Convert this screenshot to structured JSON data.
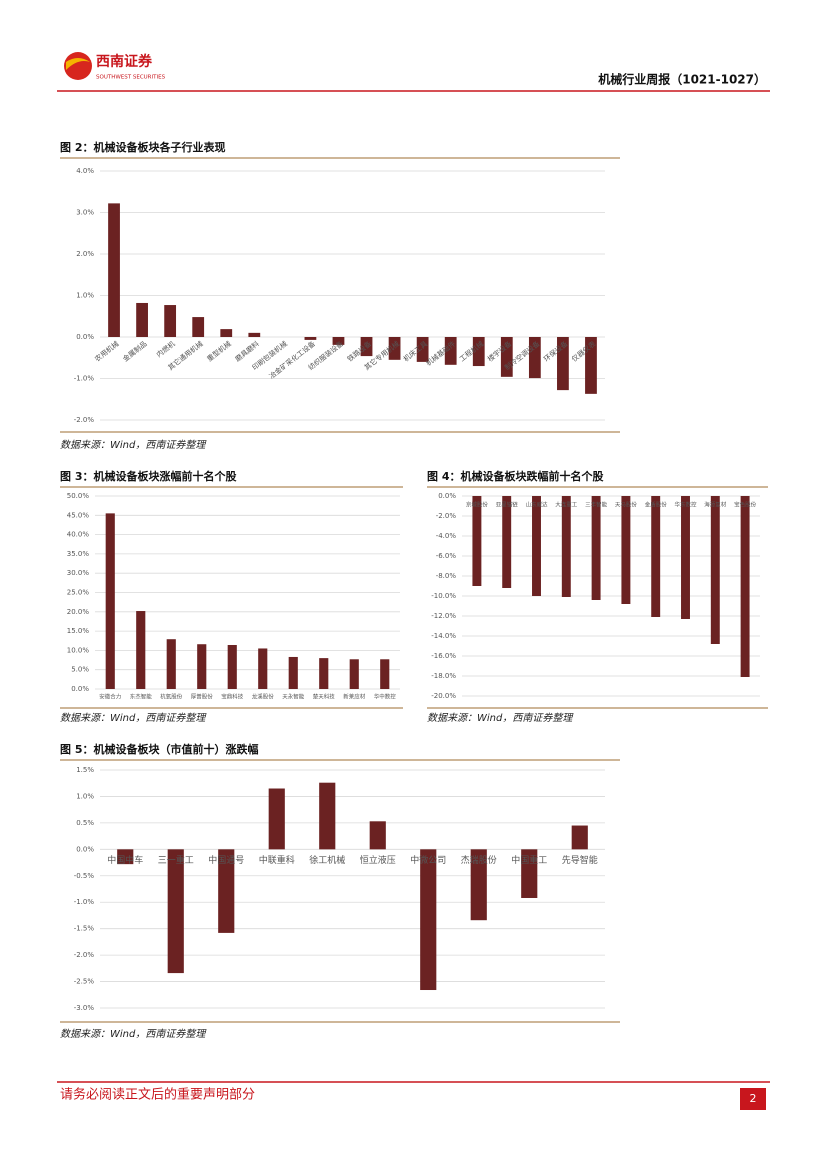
{
  "header": {
    "logo_cn": "西南证券",
    "logo_en": "SOUTHWEST SECURITIES",
    "report_title": "机械行业周报（1021-1027）"
  },
  "chart_data": [
    {
      "type": "bar",
      "title": "图 2：机械设备板块各子行业表现",
      "source": "数据来源：Wind，西南证券整理",
      "categories": [
        "农用机械",
        "金属制品",
        "内燃机",
        "其它通用机械",
        "重型机械",
        "磨具磨料",
        "印刷包装机械",
        "冶金矿采化工设备",
        "纺织服装设备",
        "铁路设备",
        "其它专用机械",
        "机床工具",
        "机械基础件",
        "工程机械",
        "楼宇设备",
        "制冷空调设备",
        "环保设备",
        "仪器仪表"
      ],
      "values": [
        3.22,
        0.82,
        0.77,
        0.48,
        0.19,
        0.1,
        0.0,
        -0.07,
        -0.19,
        -0.46,
        -0.55,
        -0.6,
        -0.67,
        -0.7,
        -0.96,
        -0.99,
        -1.28,
        -1.37
      ],
      "color": "#6b2222",
      "grid": true,
      "ylim": [
        -2,
        4
      ],
      "yticks": [
        {
          "value": 4,
          "label": "4.0%"
        },
        {
          "value": 3,
          "label": "3.0%"
        },
        {
          "value": 2,
          "label": "2.0%"
        },
        {
          "value": 1,
          "label": "1.0%"
        },
        {
          "value": 0,
          "label": "0.0%"
        },
        {
          "value": -1,
          "label": "-1.0%"
        },
        {
          "value": -2,
          "label": "-2.0%"
        }
      ]
    },
    {
      "type": "bar",
      "title": "图 3：机械设备板块涨幅前十名个股",
      "source": "数据来源：Wind，西南证券整理",
      "categories": [
        "安徽合力",
        "东杰智能",
        "杭氧股份",
        "厚普股份",
        "宝鼎科技",
        "龙溪股份",
        "天永智能",
        "楚天科技",
        "新莱应材",
        "华中数控"
      ],
      "values": [
        45.5,
        20.2,
        12.9,
        11.6,
        11.4,
        10.5,
        8.3,
        8.0,
        7.7,
        7.7
      ],
      "color": "#6b2222",
      "grid": true,
      "ylim": [
        0,
        50
      ],
      "yticks": [
        {
          "value": 50,
          "label": "50.0%"
        },
        {
          "value": 45,
          "label": "45.0%"
        },
        {
          "value": 40,
          "label": "40.0%"
        },
        {
          "value": 35,
          "label": "35.0%"
        },
        {
          "value": 30,
          "label": "30.0%"
        },
        {
          "value": 25,
          "label": "25.0%"
        },
        {
          "value": 20,
          "label": "20.0%"
        },
        {
          "value": 15,
          "label": "15.0%"
        },
        {
          "value": 10,
          "label": "10.0%"
        },
        {
          "value": 5,
          "label": "5.0%"
        },
        {
          "value": 0,
          "label": "0.0%"
        }
      ]
    },
    {
      "type": "bar",
      "title": "图 4：机械设备板块跌幅前十名个股",
      "source": "数据来源：Wind，西南证券整理",
      "categories": [
        "京城股份",
        "亚星锚链",
        "山东威达",
        "大连重工",
        "三丰智能",
        "天马股份",
        "金盾股份",
        "华东数控",
        "海源复材",
        "宝色股份"
      ],
      "values": [
        -9.0,
        -9.2,
        -10.0,
        -10.1,
        -10.4,
        -10.8,
        -12.1,
        -12.3,
        -14.8,
        -18.1
      ],
      "color": "#6b2222",
      "grid": true,
      "ylim": [
        -20,
        0
      ],
      "yticks": [
        {
          "value": 0,
          "label": "0.0%"
        },
        {
          "value": -2,
          "label": "-2.0%"
        },
        {
          "value": -4,
          "label": "-4.0%"
        },
        {
          "value": -6,
          "label": "-6.0%"
        },
        {
          "value": -8,
          "label": "-8.0%"
        },
        {
          "value": -10,
          "label": "-10.0%"
        },
        {
          "value": -12,
          "label": "-12.0%"
        },
        {
          "value": -14,
          "label": "-14.0%"
        },
        {
          "value": -16,
          "label": "-16.0%"
        },
        {
          "value": -18,
          "label": "-18.0%"
        },
        {
          "value": -20,
          "label": "-20.0%"
        }
      ]
    },
    {
      "type": "bar",
      "title": "图 5：机械设备板块（市值前十）涨跌幅",
      "source": "数据来源：Wind，西南证券整理",
      "categories": [
        "中国中车",
        "三一重工",
        "中国通号",
        "中联重科",
        "徐工机械",
        "恒立液压",
        "中微公司",
        "杰瑞股份",
        "中国重工",
        "先导智能"
      ],
      "values": [
        -0.28,
        -2.34,
        -1.58,
        1.15,
        1.26,
        0.53,
        -2.66,
        -1.34,
        -0.92,
        0.45
      ],
      "color": "#6b2222",
      "grid": true,
      "ylim": [
        -3,
        1.5
      ],
      "yticks": [
        {
          "value": 1.5,
          "label": "1.5%"
        },
        {
          "value": 1,
          "label": "1.0%"
        },
        {
          "value": 0.5,
          "label": "0.5%"
        },
        {
          "value": 0,
          "label": "0.0%"
        },
        {
          "value": -0.5,
          "label": "-0.5%"
        },
        {
          "value": -1,
          "label": "-1.0%"
        },
        {
          "value": -1.5,
          "label": "-1.5%"
        },
        {
          "value": -2,
          "label": "-2.0%"
        },
        {
          "value": -2.5,
          "label": "-2.5%"
        },
        {
          "value": -3,
          "label": "-3.0%"
        }
      ]
    }
  ],
  "footer": {
    "disclaimer": "请务必阅读正文后的重要声明部分",
    "page": 2
  }
}
